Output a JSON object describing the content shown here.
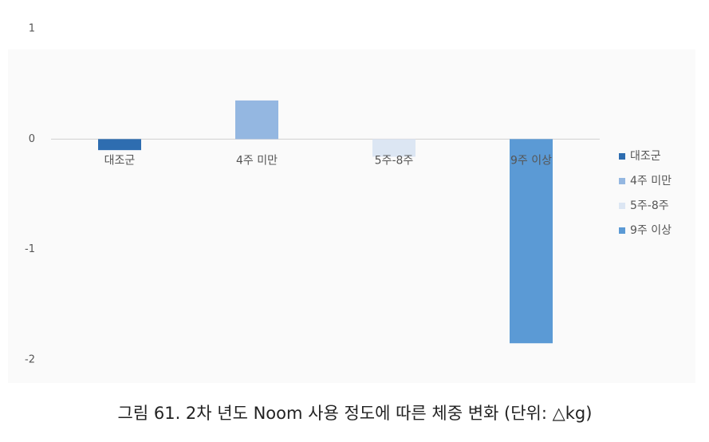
{
  "chart_data": {
    "type": "bar",
    "title": "그림 61. 2차 년도 Noom 사용 정도에 따른 체중 변화 (단위: △kg)",
    "categories": [
      "대조군",
      "4주 미만",
      "5주-8주",
      "9주 이상"
    ],
    "values": [
      -0.1,
      0.35,
      -0.16,
      -1.85
    ],
    "colors": [
      "#2e6db0",
      "#94b7e1",
      "#dce6f3",
      "#5b9ad5"
    ],
    "ylim": [
      -2,
      1
    ],
    "yticks": [
      -2,
      -1,
      0,
      1
    ],
    "legend": "right"
  }
}
